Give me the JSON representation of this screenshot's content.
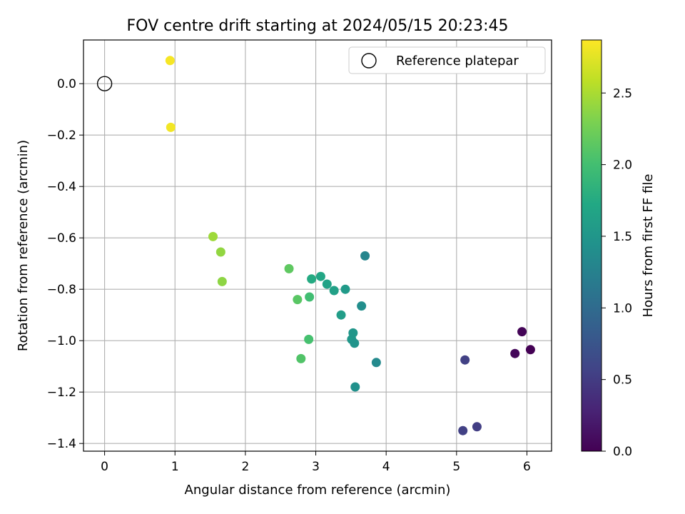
{
  "chart_data": {
    "type": "scatter",
    "title": "FOV centre drift starting at 2024/05/15 20:23:45",
    "xlabel": "Angular distance from reference (arcmin)",
    "ylabel": "Rotation from reference (arcmin)",
    "xlim": [
      -0.3,
      6.35
    ],
    "ylim": [
      -1.43,
      0.17
    ],
    "xticks": [
      0,
      1,
      2,
      3,
      4,
      5,
      6
    ],
    "xtick_labels": [
      "0",
      "1",
      "2",
      "3",
      "4",
      "5",
      "6"
    ],
    "yticks": [
      0.0,
      -0.2,
      -0.4,
      -0.6,
      -0.8,
      -1.0,
      -1.2,
      -1.4
    ],
    "ytick_labels": [
      "0.0",
      "−0.2",
      "−0.4",
      "−0.6",
      "−0.8",
      "−1.0",
      "−1.2",
      "−1.4"
    ],
    "grid": true,
    "legend": {
      "placement": "top-right",
      "label": "Reference platepar"
    },
    "reference_point": {
      "x": 0.0,
      "y": 0.0
    },
    "colorbar": {
      "label": "Hours from first FF file",
      "range": [
        0.0,
        2.87
      ],
      "colormap": "viridis",
      "ticks": [
        0.0,
        0.5,
        1.0,
        1.5,
        2.0,
        2.5
      ],
      "tick_labels": [
        "0.0",
        "0.5",
        "1.0",
        "1.5",
        "2.0",
        "2.5"
      ]
    },
    "points": [
      {
        "x": 0.93,
        "y": 0.09,
        "hours": 2.84
      },
      {
        "x": 0.94,
        "y": -0.17,
        "hours": 2.82
      },
      {
        "x": 1.54,
        "y": -0.595,
        "hours": 2.45
      },
      {
        "x": 1.65,
        "y": -0.655,
        "hours": 2.4
      },
      {
        "x": 1.67,
        "y": -0.77,
        "hours": 2.38
      },
      {
        "x": 2.62,
        "y": -0.72,
        "hours": 2.15
      },
      {
        "x": 2.74,
        "y": -0.84,
        "hours": 2.12
      },
      {
        "x": 2.79,
        "y": -1.07,
        "hours": 2.08
      },
      {
        "x": 2.9,
        "y": -0.995,
        "hours": 2.02
      },
      {
        "x": 2.91,
        "y": -0.83,
        "hours": 1.98
      },
      {
        "x": 2.94,
        "y": -0.76,
        "hours": 1.75
      },
      {
        "x": 3.07,
        "y": -0.75,
        "hours": 1.7
      },
      {
        "x": 3.16,
        "y": -0.78,
        "hours": 1.65
      },
      {
        "x": 3.26,
        "y": -0.805,
        "hours": 1.62
      },
      {
        "x": 3.36,
        "y": -0.9,
        "hours": 1.58
      },
      {
        "x": 3.42,
        "y": -0.8,
        "hours": 1.55
      },
      {
        "x": 3.51,
        "y": -0.995,
        "hours": 1.52
      },
      {
        "x": 3.53,
        "y": -0.97,
        "hours": 1.5
      },
      {
        "x": 3.55,
        "y": -1.01,
        "hours": 1.47
      },
      {
        "x": 3.56,
        "y": -1.18,
        "hours": 1.44
      },
      {
        "x": 3.65,
        "y": -0.865,
        "hours": 1.4
      },
      {
        "x": 3.7,
        "y": -0.67,
        "hours": 1.3
      },
      {
        "x": 3.86,
        "y": -1.085,
        "hours": 1.35
      },
      {
        "x": 5.09,
        "y": -1.35,
        "hours": 0.55
      },
      {
        "x": 5.12,
        "y": -1.075,
        "hours": 0.55
      },
      {
        "x": 5.29,
        "y": -1.335,
        "hours": 0.52
      },
      {
        "x": 5.83,
        "y": -1.05,
        "hours": 0.05
      },
      {
        "x": 5.93,
        "y": -0.965,
        "hours": 0.03
      },
      {
        "x": 6.05,
        "y": -1.035,
        "hours": 0.0
      }
    ]
  }
}
